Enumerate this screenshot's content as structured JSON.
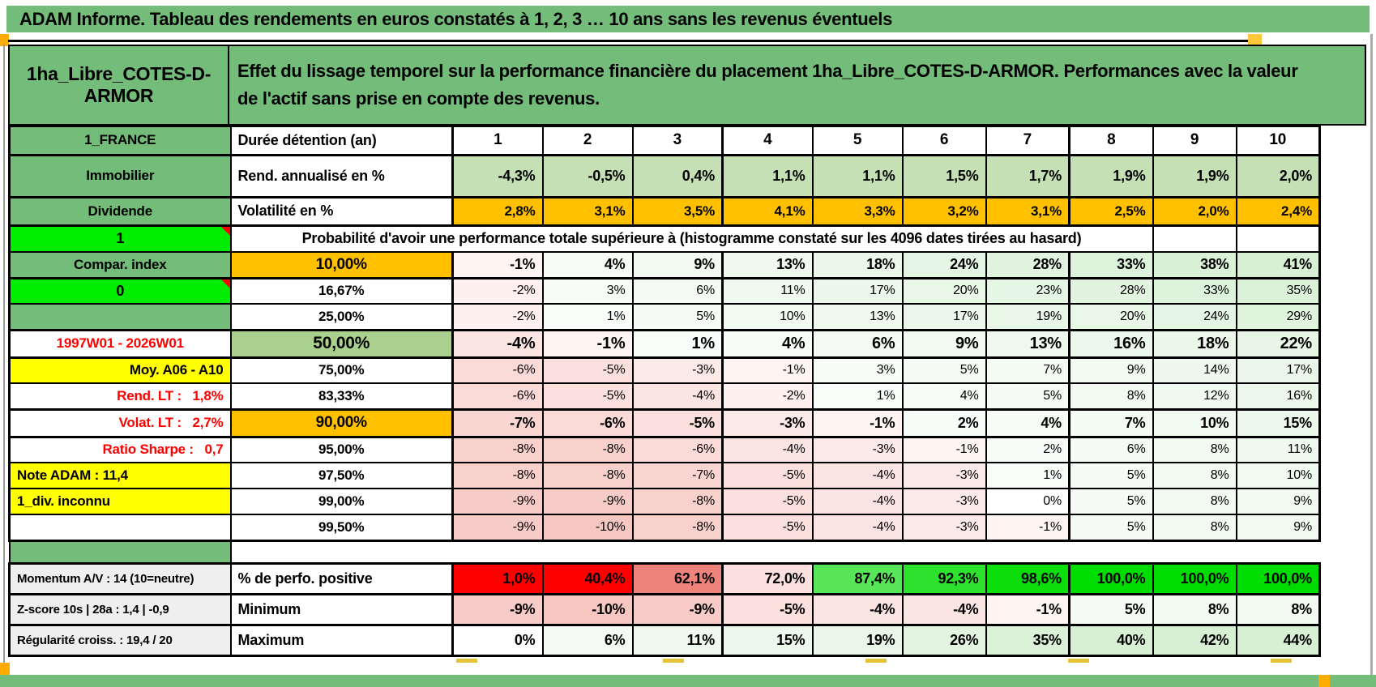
{
  "app": {
    "title": "ADAM Informe. Tableau des rendements en euros constatés à 1, 2, 3 … 10 ans sans les revenus éventuels"
  },
  "header": {
    "asset_name": "1ha_Libre_COTES-D-ARMOR",
    "description": "Effet du lissage temporel sur la performance financière du placement 1ha_Libre_COTES-D-ARMOR. Performances avec la valeur de l'actif sans prise en compte des revenus."
  },
  "colors": {
    "header_green": "#73BC79",
    "light_green_cells": "#C5E0B4",
    "orange_cells": "#FFC000",
    "bright_green_cells": "#00EC00",
    "median_green_cell": "#A9D08E",
    "yellow_labels": "#FFFF00",
    "grey_labels": "#EFEFEF",
    "red_text": "#FF0000"
  },
  "matrix": {
    "perfo_colors": [
      "#FF0000",
      "#FF0000",
      "#EE837C",
      "#FBE0DF",
      "#57E657",
      "#2CE22C",
      "#0CDE0C",
      "#00DC00",
      "#00DC00",
      "#00DC00"
    ],
    "rows": [
      {
        "kind": "colhead",
        "a": "1_FRANCE",
        "a_style": "green",
        "b": "Durée détention (an)",
        "b_style": "left",
        "cells": [
          "1",
          "2",
          "3",
          "4",
          "5",
          "6",
          "7",
          "8",
          "9",
          "10"
        ]
      },
      {
        "kind": "annualized",
        "a": "Immobilier",
        "a_style": "green",
        "b": "Rend. annualisé en %",
        "b_style": "left",
        "cells": [
          "-4,3%",
          "-0,5%",
          "0,4%",
          "1,1%",
          "1,1%",
          "1,5%",
          "1,7%",
          "1,9%",
          "1,9%",
          "2,0%"
        ]
      },
      {
        "kind": "volatility",
        "a": "Dividende",
        "a_style": "green",
        "b": "Volatilité en %",
        "b_style": "left",
        "cells": [
          "2,8%",
          "3,1%",
          "3,5%",
          "4,1%",
          "3,3%",
          "3,2%",
          "3,1%",
          "2,5%",
          "2,0%",
          "2,4%"
        ]
      },
      {
        "kind": "probheader",
        "a": "1",
        "a_style": "bright",
        "merged": "Probabilité d'avoir une performance totale supérieure à (histogramme constaté sur les 4096 dates tirées au hasard)",
        "tail": [
          "",
          ""
        ]
      },
      {
        "kind": "p-strong",
        "a": "Compar. index",
        "a_style": "green",
        "b": "10,00%",
        "b_style": "orange",
        "cells": [
          "-1%",
          "4%",
          "9%",
          "13%",
          "18%",
          "24%",
          "28%",
          "33%",
          "38%",
          "41%"
        ]
      },
      {
        "kind": "p",
        "a": "0",
        "a_style": "bright",
        "b": "16,67%",
        "b_style": "center",
        "cells": [
          "-2%",
          "3%",
          "6%",
          "11%",
          "17%",
          "20%",
          "23%",
          "28%",
          "33%",
          "35%"
        ]
      },
      {
        "kind": "p",
        "a": "",
        "a_style": "green",
        "b": "25,00%",
        "b_style": "center",
        "cells": [
          "-2%",
          "1%",
          "5%",
          "10%",
          "13%",
          "17%",
          "19%",
          "20%",
          "24%",
          "29%"
        ]
      },
      {
        "kind": "p-big",
        "a": "1997W01 - 2026W01",
        "a_style": "redtext",
        "b": "50,00%",
        "b_style": "green",
        "cells": [
          "-4%",
          "-1%",
          "1%",
          "4%",
          "6%",
          "9%",
          "13%",
          "16%",
          "18%",
          "22%"
        ]
      },
      {
        "kind": "p",
        "a": "Moy. A06 - A10",
        "a_style": "yellow-right",
        "b": "75,00%",
        "b_style": "center",
        "cells": [
          "-6%",
          "-5%",
          "-3%",
          "-1%",
          "3%",
          "5%",
          "7%",
          "9%",
          "14%",
          "17%"
        ]
      },
      {
        "kind": "p",
        "a": "Rend. LT :   1,8%",
        "a_style": "red-right",
        "b": "83,33%",
        "b_style": "center",
        "cells": [
          "-6%",
          "-5%",
          "-4%",
          "-2%",
          "1%",
          "4%",
          "5%",
          "8%",
          "12%",
          "16%"
        ]
      },
      {
        "kind": "p-strong2",
        "a": "Volat. LT :   2,7%",
        "a_style": "red-right",
        "b": "90,00%",
        "b_style": "orange",
        "cells": [
          "-7%",
          "-6%",
          "-5%",
          "-3%",
          "-1%",
          "2%",
          "4%",
          "7%",
          "10%",
          "15%"
        ]
      },
      {
        "kind": "p",
        "a": "Ratio Sharpe :   0,7",
        "a_style": "red-right",
        "b": "95,00%",
        "b_style": "center",
        "cells": [
          "-8%",
          "-8%",
          "-6%",
          "-4%",
          "-3%",
          "-1%",
          "2%",
          "6%",
          "8%",
          "11%"
        ]
      },
      {
        "kind": "p",
        "a": "Note ADAM : 11,4",
        "a_style": "yellow-left",
        "b": "97,50%",
        "b_style": "center",
        "cells": [
          "-8%",
          "-8%",
          "-7%",
          "-5%",
          "-4%",
          "-3%",
          "1%",
          "5%",
          "8%",
          "10%"
        ]
      },
      {
        "kind": "p",
        "a": "1_div. inconnu",
        "a_style": "yellow-left",
        "b": "99,00%",
        "b_style": "center",
        "cells": [
          "-9%",
          "-9%",
          "-8%",
          "-5%",
          "-4%",
          "-3%",
          "0%",
          "5%",
          "8%",
          "9%"
        ]
      },
      {
        "kind": "p",
        "a": "",
        "a_style": "white",
        "b": "99,50%",
        "b_style": "center",
        "cells": [
          "-9%",
          "-10%",
          "-8%",
          "-5%",
          "-4%",
          "-3%",
          "-1%",
          "5%",
          "8%",
          "9%"
        ]
      },
      {
        "kind": "separator"
      },
      {
        "kind": "perfo",
        "a": "Momentum A/V : 14 (10=neutre)",
        "a_style": "grey",
        "b": "% de perfo. positive",
        "b_style": "left",
        "cells": [
          "1,0%",
          "40,4%",
          "62,1%",
          "72,0%",
          "87,4%",
          "92,3%",
          "98,6%",
          "100,0%",
          "100,0%",
          "100,0%"
        ]
      },
      {
        "kind": "minmax",
        "a": "Z-score 10s | 28a : 1,4 | -0,9",
        "a_style": "grey",
        "b": "Minimum",
        "b_style": "left",
        "cells": [
          "-9%",
          "-10%",
          "-9%",
          "-5%",
          "-4%",
          "-4%",
          "-1%",
          "5%",
          "8%",
          "8%"
        ]
      },
      {
        "kind": "minmax",
        "a": "Régularité croiss. : 19,4 / 20",
        "a_style": "grey",
        "b": "Maximum",
        "b_style": "left",
        "cells": [
          "0%",
          "6%",
          "11%",
          "15%",
          "19%",
          "26%",
          "35%",
          "40%",
          "42%",
          "44%"
        ]
      }
    ]
  }
}
